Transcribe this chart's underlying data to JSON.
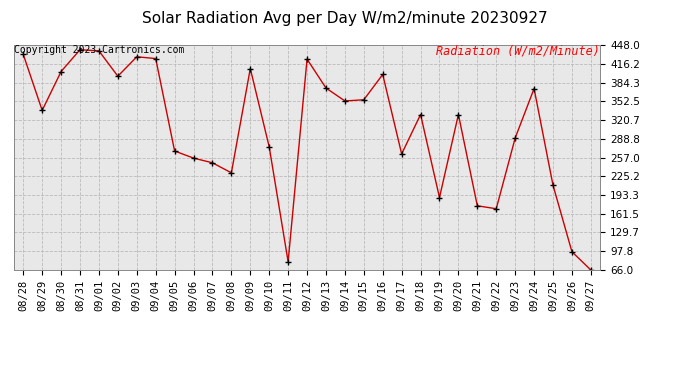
{
  "title": "Solar Radiation Avg per Day W/m2/minute 20230927",
  "copyright": "Copyright 2023 Cartronics.com",
  "legend_label": "Radiation (W/m2/Minute)",
  "dates": [
    "08/28",
    "08/29",
    "08/30",
    "08/31",
    "09/01",
    "09/02",
    "09/03",
    "09/04",
    "09/05",
    "09/06",
    "09/07",
    "09/08",
    "09/09",
    "09/10",
    "09/11",
    "09/12",
    "09/13",
    "09/14",
    "09/15",
    "09/16",
    "09/17",
    "09/18",
    "09/19",
    "09/20",
    "09/21",
    "09/22",
    "09/23",
    "09/24",
    "09/25",
    "09/26",
    "09/27"
  ],
  "values": [
    432,
    337,
    403,
    440,
    438,
    395,
    428,
    425,
    268,
    256,
    248,
    231,
    408,
    275,
    80,
    424,
    375,
    353,
    355,
    398,
    263,
    330,
    189,
    330,
    175,
    170,
    290,
    374,
    210,
    97,
    66
  ],
  "line_color": "#cc0000",
  "marker_color": "#000000",
  "bg_color": "#ffffff",
  "plot_bg_color": "#e8e8e8",
  "grid_color": "#bbbbbb",
  "title_fontsize": 11,
  "tick_fontsize": 7.5,
  "copyright_fontsize": 7,
  "legend_fontsize": 8.5,
  "ymin": 66.0,
  "ymax": 448.0,
  "yticks": [
    448.0,
    416.2,
    384.3,
    352.5,
    320.7,
    288.8,
    257.0,
    225.2,
    193.3,
    161.5,
    129.7,
    97.8,
    66.0
  ]
}
